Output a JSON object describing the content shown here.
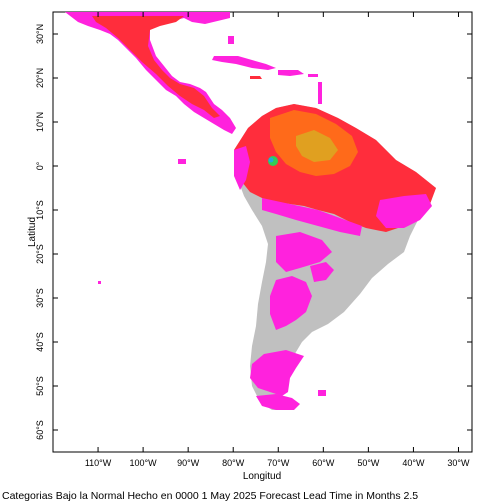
{
  "map": {
    "caption": "Categorias Bajo la Normal Hecho en 0000 1 May 2025 Forecast Lead Time in Months 2.5",
    "x_axis_title": "Longitud",
    "y_axis_title": "Latitud",
    "lon_range": [
      -120,
      -27
    ],
    "lat_range": [
      -65,
      35
    ],
    "lon_ticks": [
      {
        "value": -110,
        "label": "110°W"
      },
      {
        "value": -100,
        "label": "100°W"
      },
      {
        "value": -90,
        "label": "90°W"
      },
      {
        "value": -80,
        "label": "80°W"
      },
      {
        "value": -70,
        "label": "70°W"
      },
      {
        "value": -60,
        "label": "60°W"
      },
      {
        "value": -50,
        "label": "50°W"
      },
      {
        "value": -40,
        "label": "40°W"
      },
      {
        "value": -30,
        "label": "30°W"
      }
    ],
    "lat_ticks": [
      {
        "value": 30,
        "label": "30°N"
      },
      {
        "value": 20,
        "label": "20°N"
      },
      {
        "value": 10,
        "label": "10°N"
      },
      {
        "value": 0,
        "label": "0°"
      },
      {
        "value": -10,
        "label": "10°S"
      },
      {
        "value": -20,
        "label": "20°S"
      },
      {
        "value": -30,
        "label": "30°S"
      },
      {
        "value": -40,
        "label": "40°S"
      },
      {
        "value": -50,
        "label": "50°S"
      },
      {
        "value": -60,
        "label": "60°S"
      }
    ],
    "colors": {
      "magenta": "#ff22dd",
      "red": "#ff2d3c",
      "orange": "#ff6a1a",
      "yellow_orange": "#e0a020",
      "gray_no_signal": "#c0c0c0",
      "green": "#33cc55",
      "cyan": "#22aadd"
    }
  }
}
